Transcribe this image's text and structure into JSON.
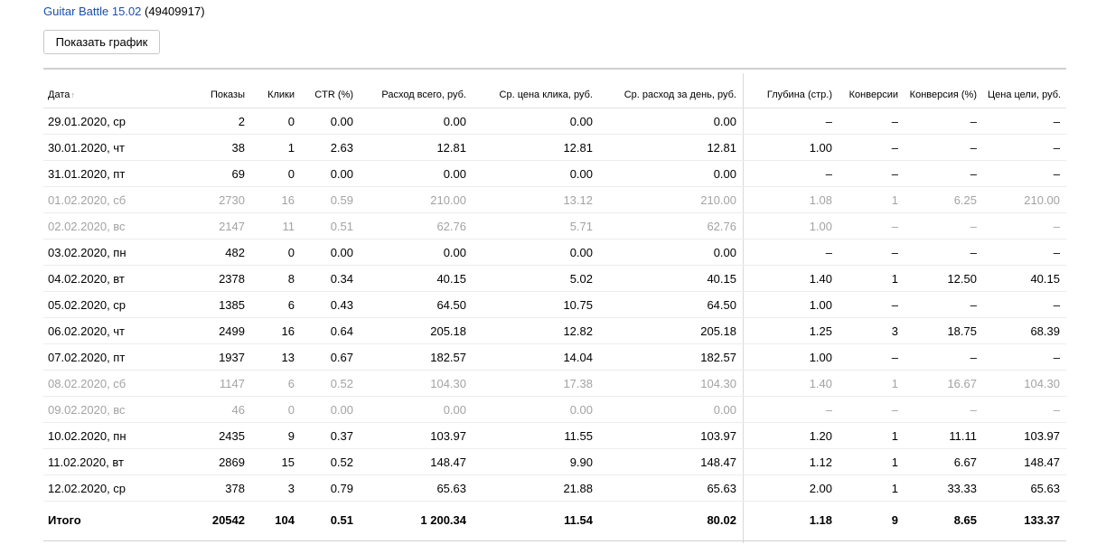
{
  "campaign": {
    "name": "Guitar Battle 15.02",
    "id": "(49409917)"
  },
  "chart_button_label": "Показать график",
  "sort_arrow": "↑",
  "columns": [
    "Дата",
    "Показы",
    "Клики",
    "CTR (%)",
    "Расход всего, руб.",
    "Ср. цена клика, руб.",
    "Ср. расход за день, руб.",
    "Глубина (стр.)",
    "Конверсии",
    "Конверсия (%)",
    "Цена цели, руб."
  ],
  "rows": [
    {
      "weekend": false,
      "cells": [
        "29.01.2020, ср",
        "2",
        "0",
        "0.00",
        "0.00",
        "0.00",
        "0.00",
        "–",
        "–",
        "–",
        "–"
      ]
    },
    {
      "weekend": false,
      "cells": [
        "30.01.2020, чт",
        "38",
        "1",
        "2.63",
        "12.81",
        "12.81",
        "12.81",
        "1.00",
        "–",
        "–",
        "–"
      ]
    },
    {
      "weekend": false,
      "cells": [
        "31.01.2020, пт",
        "69",
        "0",
        "0.00",
        "0.00",
        "0.00",
        "0.00",
        "–",
        "–",
        "–",
        "–"
      ]
    },
    {
      "weekend": true,
      "cells": [
        "01.02.2020, сб",
        "2730",
        "16",
        "0.59",
        "210.00",
        "13.12",
        "210.00",
        "1.08",
        "1",
        "6.25",
        "210.00"
      ]
    },
    {
      "weekend": true,
      "cells": [
        "02.02.2020, вс",
        "2147",
        "11",
        "0.51",
        "62.76",
        "5.71",
        "62.76",
        "1.00",
        "–",
        "–",
        "–"
      ]
    },
    {
      "weekend": false,
      "cells": [
        "03.02.2020, пн",
        "482",
        "0",
        "0.00",
        "0.00",
        "0.00",
        "0.00",
        "–",
        "–",
        "–",
        "–"
      ]
    },
    {
      "weekend": false,
      "cells": [
        "04.02.2020, вт",
        "2378",
        "8",
        "0.34",
        "40.15",
        "5.02",
        "40.15",
        "1.40",
        "1",
        "12.50",
        "40.15"
      ]
    },
    {
      "weekend": false,
      "cells": [
        "05.02.2020, ср",
        "1385",
        "6",
        "0.43",
        "64.50",
        "10.75",
        "64.50",
        "1.00",
        "–",
        "–",
        "–"
      ]
    },
    {
      "weekend": false,
      "cells": [
        "06.02.2020, чт",
        "2499",
        "16",
        "0.64",
        "205.18",
        "12.82",
        "205.18",
        "1.25",
        "3",
        "18.75",
        "68.39"
      ]
    },
    {
      "weekend": false,
      "cells": [
        "07.02.2020, пт",
        "1937",
        "13",
        "0.67",
        "182.57",
        "14.04",
        "182.57",
        "1.00",
        "–",
        "–",
        "–"
      ]
    },
    {
      "weekend": true,
      "cells": [
        "08.02.2020, сб",
        "1147",
        "6",
        "0.52",
        "104.30",
        "17.38",
        "104.30",
        "1.40",
        "1",
        "16.67",
        "104.30"
      ]
    },
    {
      "weekend": true,
      "cells": [
        "09.02.2020, вс",
        "46",
        "0",
        "0.00",
        "0.00",
        "0.00",
        "0.00",
        "–",
        "–",
        "–",
        "–"
      ]
    },
    {
      "weekend": false,
      "cells": [
        "10.02.2020, пн",
        "2435",
        "9",
        "0.37",
        "103.97",
        "11.55",
        "103.97",
        "1.20",
        "1",
        "11.11",
        "103.97"
      ]
    },
    {
      "weekend": false,
      "cells": [
        "11.02.2020, вт",
        "2869",
        "15",
        "0.52",
        "148.47",
        "9.90",
        "148.47",
        "1.12",
        "1",
        "6.67",
        "148.47"
      ]
    },
    {
      "weekend": false,
      "cells": [
        "12.02.2020, ср",
        "378",
        "3",
        "0.79",
        "65.63",
        "21.88",
        "65.63",
        "2.00",
        "1",
        "33.33",
        "65.63"
      ]
    }
  ],
  "total": [
    "Итого",
    "20542",
    "104",
    "0.51",
    "1 200.34",
    "11.54",
    "80.02",
    "1.18",
    "9",
    "8.65",
    "133.37"
  ]
}
